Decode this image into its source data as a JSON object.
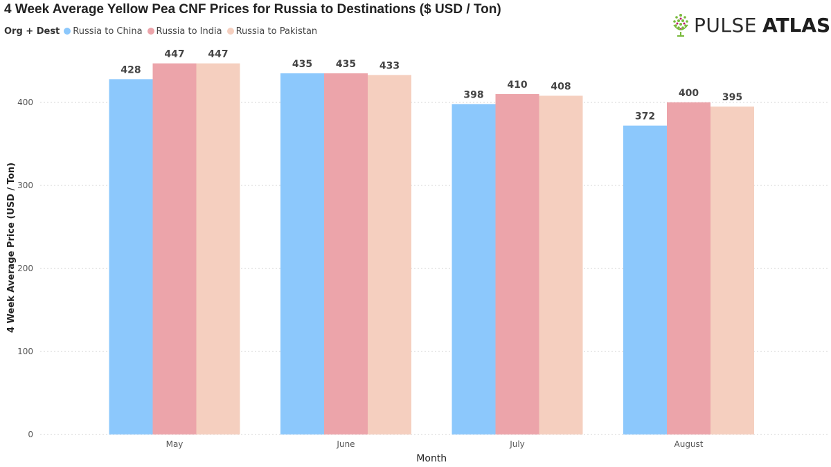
{
  "title": "4 Week Average Yellow Pea CNF Prices for Russia to Destinations ($ USD / Ton)",
  "legend": {
    "title": "Org + Dest",
    "items": [
      {
        "label": "Russia to China",
        "color": "#8cc8fc"
      },
      {
        "label": "Russia to India",
        "color": "#eca4aa"
      },
      {
        "label": "Russia to Pakistan",
        "color": "#f5cfbf"
      }
    ]
  },
  "logo": {
    "text_a": "PULSE",
    "text_b": "ATLAS"
  },
  "chart_data": {
    "type": "bar",
    "categories": [
      "May",
      "June",
      "July",
      "August"
    ],
    "series": [
      {
        "name": "Russia to China",
        "values": [
          428,
          435,
          398,
          372
        ],
        "color": "#8cc8fc"
      },
      {
        "name": "Russia to India",
        "values": [
          447,
          435,
          410,
          400
        ],
        "color": "#eca4aa"
      },
      {
        "name": "Russia to Pakistan",
        "values": [
          447,
          433,
          408,
          395
        ],
        "color": "#f5cfbf"
      }
    ],
    "xlabel": "Month",
    "ylabel": "4 Week Average Price (USD / Ton)",
    "ylim": [
      0,
      450
    ],
    "yticks": [
      0,
      100,
      200,
      300,
      400
    ],
    "grid": true,
    "legend_position": "top-left"
  }
}
